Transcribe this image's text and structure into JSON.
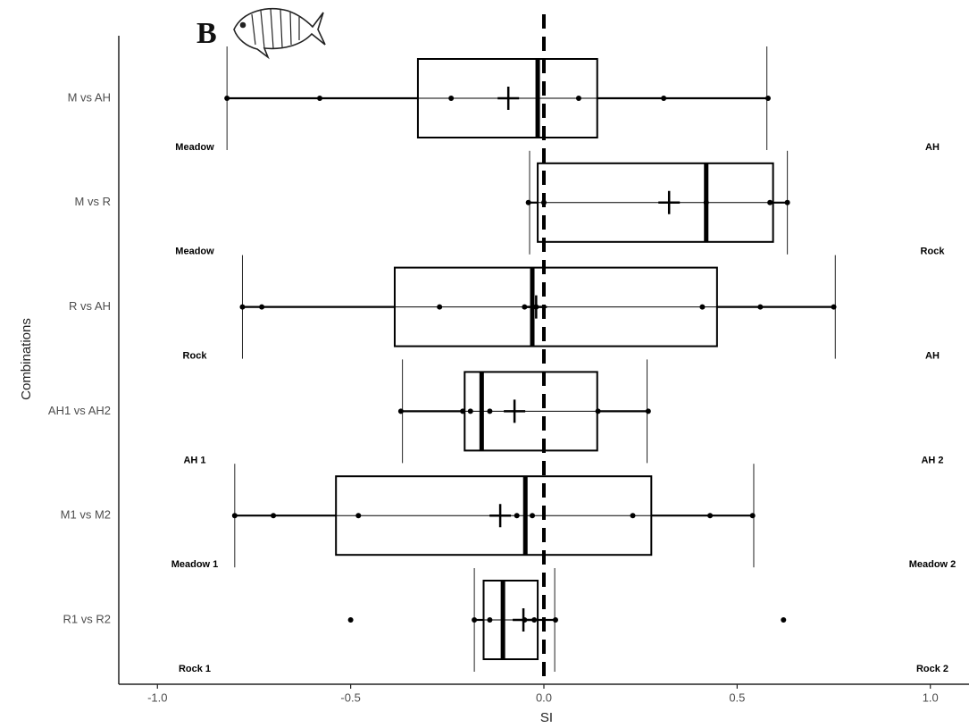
{
  "chart_data": {
    "type": "boxplot",
    "panel_label": "B",
    "xlabel": "SI",
    "ylabel": "Combinations",
    "xlim": [
      -1.1,
      1.1
    ],
    "xticks": [
      {
        "value": -1.0,
        "label": "-1.0"
      },
      -0.5,
      {
        "value": 0.0,
        "label": "0.0"
      },
      0.5,
      {
        "value": 1.0,
        "label": "1.0"
      }
    ],
    "reference_line": 0,
    "categories": [
      "M vs AH",
      "M vs R",
      "R vs AH",
      "AH1 vs AH2",
      "M1 vs M2",
      "R1 vs R2"
    ],
    "left_labels": [
      "Meadow",
      "Meadow",
      "Rock",
      "AH 1",
      "Meadow 1",
      "Rock 1"
    ],
    "right_labels": [
      "AH",
      "Rock",
      "AH",
      "AH 2",
      "Meadow 2",
      "Rock 2"
    ],
    "boxes": [
      {
        "whislo": -0.82,
        "q1": -0.326,
        "med": -0.016,
        "q3": 0.138,
        "whishi": 0.577,
        "mean": -0.092,
        "points": [
          -0.82,
          -0.58,
          -0.24,
          0.09,
          0.31,
          0.58
        ]
      },
      {
        "whislo": -0.037,
        "q1": -0.016,
        "med": 0.42,
        "q3": 0.593,
        "whishi": 0.63,
        "mean": 0.324,
        "points": [
          -0.04,
          0.0,
          0.42,
          0.585,
          0.63
        ]
      },
      {
        "whislo": -0.78,
        "q1": -0.386,
        "med": -0.03,
        "q3": 0.448,
        "whishi": 0.754,
        "mean": -0.02,
        "points": [
          -0.78,
          -0.73,
          -0.27,
          -0.05,
          -0.02,
          0.41,
          0.56,
          0.75
        ]
      },
      {
        "whislo": -0.366,
        "q1": -0.205,
        "med": -0.161,
        "q3": 0.138,
        "whishi": 0.267,
        "mean": -0.076,
        "points": [
          -0.37,
          -0.21,
          -0.19,
          -0.14,
          0.14,
          0.27
        ]
      },
      {
        "whislo": -0.8,
        "q1": -0.538,
        "med": -0.048,
        "q3": 0.278,
        "whishi": 0.543,
        "mean": -0.113,
        "points": [
          -0.8,
          -0.7,
          -0.48,
          -0.07,
          -0.03,
          0.23,
          0.43,
          0.54
        ]
      },
      {
        "whislo": -0.18,
        "q1": -0.156,
        "med": -0.106,
        "q3": -0.016,
        "whishi": 0.028,
        "mean": -0.053,
        "points": [
          -0.5,
          -0.18,
          -0.14,
          -0.05,
          -0.025,
          0.03,
          0.62
        ]
      }
    ]
  }
}
